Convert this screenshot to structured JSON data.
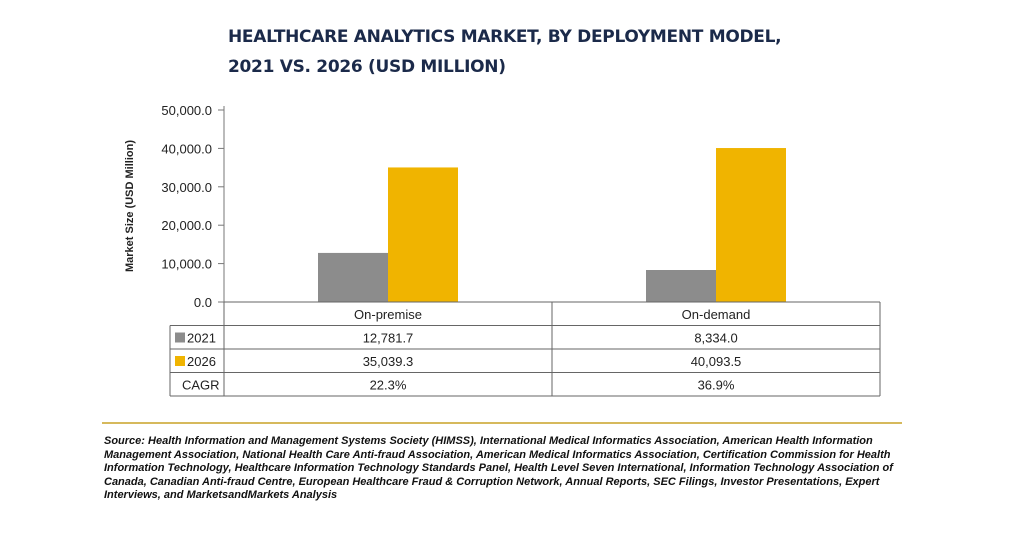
{
  "title_line1": "HEALTHCARE ANALYTICS MARKET, BY DEPLOYMENT MODEL,",
  "title_line2": "2021 VS. 2026 (USD MILLION)",
  "colors": {
    "s2021": "#8c8c8c",
    "s2026": "#f0b400",
    "rule": "#c9a227"
  },
  "chart_data": {
    "type": "bar",
    "ylabel": "Market Size (USD Million)",
    "ylim": [
      0,
      50000
    ],
    "yticks": [
      "0.0",
      "10,000.0",
      "20,000.0",
      "30,000.0",
      "40,000.0",
      "50,000.0"
    ],
    "categories": [
      "On-premise",
      "On-demand"
    ],
    "series": [
      {
        "name": "2021",
        "values": [
          12781.7,
          8334.0
        ],
        "labels": [
          "12,781.7",
          "8,334.0"
        ]
      },
      {
        "name": "2026",
        "values": [
          35039.3,
          40093.5
        ],
        "labels": [
          "35,039.3",
          "40,093.5"
        ]
      }
    ],
    "table_extra_row": {
      "name": "CAGR",
      "labels": [
        "22.3%",
        "36.9%"
      ]
    }
  },
  "source": "Source: Health Information and Management Systems Society (HIMSS), International Medical Informatics Association, American Health Information Management Association, National Health Care Anti-fraud Association, American Medical Informatics Association, Certification Commission for Health Information Technology, Healthcare Information Technology Standards Panel, Health Level Seven International, Information Technology Association of Canada, Canadian Anti-fraud Centre, European Healthcare Fraud & Corruption Network, Annual Reports, SEC Filings, Investor Presentations, Expert Interviews, and MarketsandMarkets Analysis"
}
